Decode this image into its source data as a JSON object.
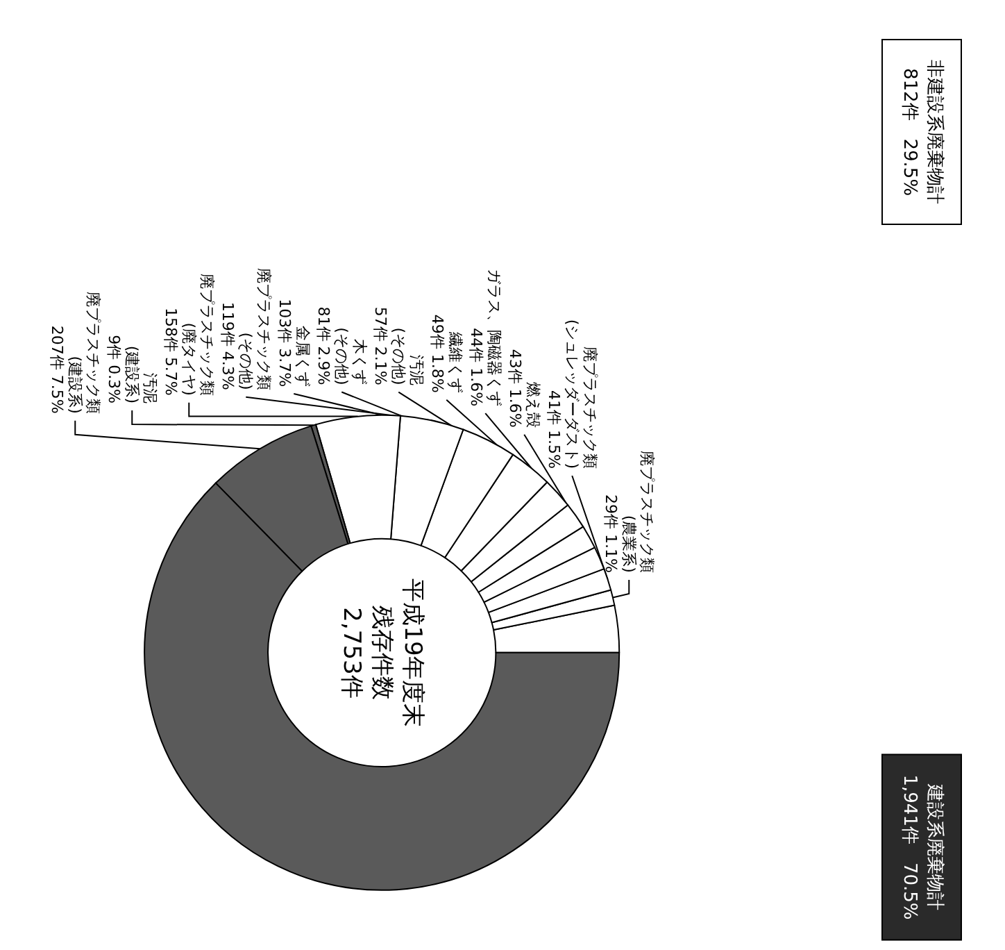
{
  "chart_data": {
    "type": "donut",
    "categories": [
      null,
      "廃プラスチック類(農業系)",
      "廃プラスチック類(シュレッダーダスト)",
      "燃え殻",
      "ガラス、陶磁器くず",
      "繊維くず",
      "汚泥(その他)",
      "木くず(その他)",
      "金属くず",
      "廃プラスチック類(その他)",
      "廃プラスチック類(廃タイヤ)",
      "汚泥(建設系)",
      "廃プラスチック類(建設系)",
      null
    ],
    "values": [
      88,
      29,
      41,
      43,
      44,
      49,
      57,
      81,
      103,
      119,
      158,
      9,
      207,
      1725
    ],
    "value_labels": [
      null,
      "29件 1.1%",
      "41件 1.5%",
      "43件 1.6%",
      "44件 1.6%",
      "49件 1.8%",
      "57件 2.1%",
      "81件 2.9%",
      "103件 3.7%",
      "119件 4.3%",
      "158件 5.7%",
      "9件 0.3%",
      "207件 7.5%",
      null
    ],
    "colors": [
      "#ffffff",
      "#ffffff",
      "#ffffff",
      "#ffffff",
      "#ffffff",
      "#ffffff",
      "#ffffff",
      "#ffffff",
      "#ffffff",
      "#ffffff",
      "#ffffff",
      "#5a5a5a",
      "#5a5a5a",
      "#5a5a5a"
    ],
    "annotations": [
      "平成19年度末",
      "残存件数",
      "2,753件",
      "非建設系廃棄物計\n812件　29.5%",
      "建設系廃棄物計\n1,941件　70.5%"
    ],
    "legend": false
  }
}
